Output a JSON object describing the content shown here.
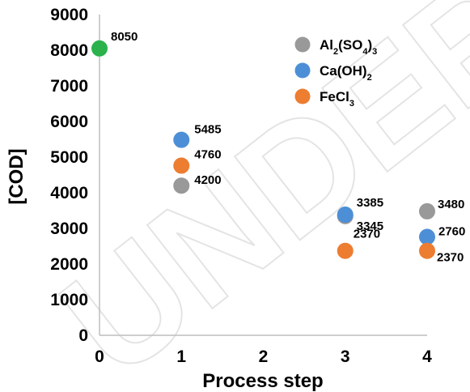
{
  "chart_data": {
    "type": "scatter",
    "title": "",
    "xlabel": "Process step",
    "ylabel": "[COD]",
    "xlim": [
      0,
      4
    ],
    "ylim": [
      0,
      9000
    ],
    "x_ticks": [
      "0",
      "1",
      "2",
      "3",
      "4"
    ],
    "y_ticks": [
      "0",
      "1000",
      "2000",
      "3000",
      "4000",
      "5000",
      "6000",
      "7000",
      "8000",
      "9000"
    ],
    "grid": false,
    "legend_position": "top-right",
    "watermark": "UNDER",
    "series": [
      {
        "name": "",
        "color": "#2bb24c",
        "points": [
          {
            "x": 0,
            "y": 8050,
            "label": "8050"
          }
        ]
      },
      {
        "name": "Al2(SO4)3",
        "legend_parts": [
          [
            "Al",
            ""
          ],
          [
            "2",
            "sub"
          ],
          [
            "(SO",
            ""
          ],
          [
            "4",
            "sub"
          ],
          [
            ")",
            ""
          ],
          [
            "3",
            "sub"
          ]
        ],
        "color": "#999999",
        "points": [
          {
            "x": 1,
            "y": 4200,
            "label": "4200"
          },
          {
            "x": 3,
            "y": 3345,
            "label": "3345"
          },
          {
            "x": 4,
            "y": 3480,
            "label": "3480"
          }
        ]
      },
      {
        "name": "Ca(OH)2",
        "legend_parts": [
          [
            "Ca(OH)",
            ""
          ],
          [
            "2",
            "sub"
          ]
        ],
        "color": "#4d8fd6",
        "points": [
          {
            "x": 1,
            "y": 5485,
            "label": "5485"
          },
          {
            "x": 3,
            "y": 3385,
            "label": "3385"
          },
          {
            "x": 4,
            "y": 2760,
            "label": "2760"
          }
        ]
      },
      {
        "name": "FeCl3",
        "legend_parts": [
          [
            "FeCl",
            ""
          ],
          [
            "3",
            "sub"
          ]
        ],
        "color": "#ed7d31",
        "points": [
          {
            "x": 1,
            "y": 4760,
            "label": "4760"
          },
          {
            "x": 3,
            "y": 2370,
            "label": "2370"
          },
          {
            "x": 4,
            "y": 2370,
            "label": "2370"
          }
        ]
      }
    ]
  }
}
